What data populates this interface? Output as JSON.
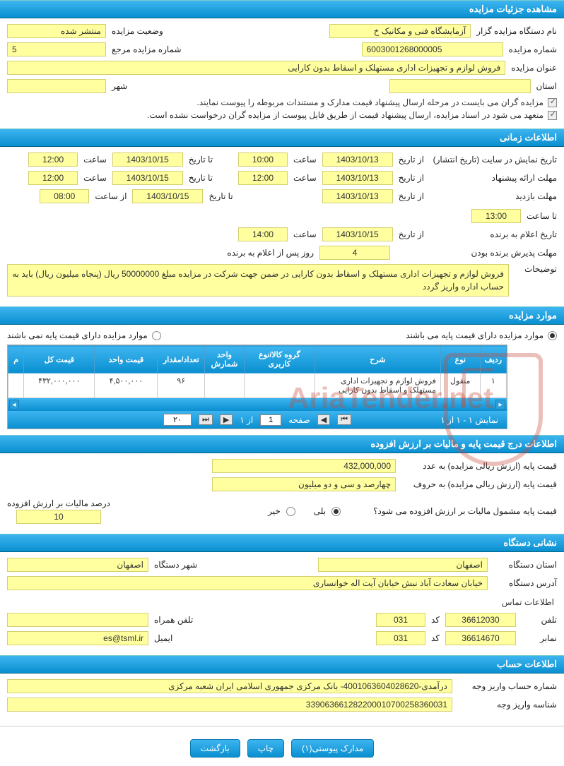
{
  "colors": {
    "header_gradient_top": "#3db5f0",
    "header_gradient_bottom": "#0a8fd0",
    "field_bg": "#ffffa0",
    "field_border": "#d4d070",
    "watermark": "#c84a3a"
  },
  "sections": {
    "details": {
      "title": "مشاهده جزئیات مزایده",
      "org_label": "نام دستگاه مزایده گزار",
      "org_value": "آزمایشگاه فنی و مکانیک خ",
      "status_label": "وضعیت مزایده",
      "status_value": "منتشر شده",
      "number_label": "شماره مزایده",
      "number_value": "6003001268000005",
      "ref_label": "شماره مزایده مرجع",
      "ref_value": "5",
      "title_label": "عنوان مزایده",
      "title_value": "فروش لوازم و تجهیزات اداری مستهلک و اسقاط بدون کارایی",
      "province_label": "استان",
      "province_value": "",
      "city_label": "شهر",
      "city_value": "",
      "note1": "مزایده گران می بایست در مرحله ارسال پیشنهاد قیمت مدارک و مستندات مربوطه را پیوست نمایند.",
      "note2": "متعهد می شود در اسناد مزایده، ارسال پیشنهاد قیمت از طریق فایل پیوست از مزایده گران درخواست نشده است."
    },
    "timing": {
      "title": "اطلاعات زمانی",
      "publish_label": "تاریخ نمایش در سایت (تاریخ انتشار)",
      "from_label": "از تاریخ",
      "to_label": "تا تاریخ",
      "hour_label": "ساعت",
      "from_hour_label": "از ساعت",
      "to_hour_label": "تا ساعت",
      "publish_from_date": "1403/10/13",
      "publish_from_time": "10:00",
      "publish_to_date": "1403/10/15",
      "publish_to_time": "12:00",
      "proposal_label": "مهلت ارائه پیشنهاد",
      "proposal_from_date": "1403/10/13",
      "proposal_from_time": "12:00",
      "proposal_to_date": "1403/10/15",
      "proposal_to_time": "12:00",
      "visit_label": "مهلت بازدید",
      "visit_from_date": "1403/10/13",
      "visit_to_date": "1403/10/15",
      "visit_from_time": "08:00",
      "visit_to_time": "13:00",
      "winner_label": "تاریخ اعلام به برنده",
      "winner_date": "1403/10/15",
      "winner_time": "14:00",
      "accept_label": "مهلت پذیرش برنده بودن",
      "accept_days": "4",
      "accept_suffix": "روز پس از اعلام به برنده",
      "desc_label": "توضیحات",
      "desc_value": "فروش لوازم و تجهیزات اداری مستهلک و اسقاط بدون کارایی در ضمن جهت شرکت در مزایده مبلغ 50000000 ریال (پنجاه میلیون ریال) باید به حساب اداره واریز گردد"
    },
    "items": {
      "title": "موارد مزایده",
      "opt_has_base": "موارد مزایده دارای قیمت پایه می باشند",
      "opt_no_base": "موارد مزایده دارای قیمت پایه نمی باشند",
      "columns": [
        "ردیف",
        "نوع",
        "شرح",
        "گروه کالا/نوع کاربری",
        "واحد شمارش",
        "تعداد/مقدار",
        "قیمت واحد",
        "قیمت کل",
        "م"
      ],
      "rows": [
        [
          "۱",
          "منقول",
          "فروش لوازم و تجهیزات اداری مستهلک و اسقاط بدون کارایی",
          "",
          "",
          "۹۶",
          "۴,۵۰۰,۰۰۰",
          "۴۳۲,۰۰۰,۰۰۰",
          ""
        ]
      ],
      "pager": {
        "page_label": "صفحه",
        "page_value": "1",
        "of_label": "از ۱",
        "per_page": "۲۰",
        "summary": "نمایش ۱ - ۱ از ۱"
      }
    },
    "price": {
      "title": "اطلاعات درج قیمت پایه و مالیات بر ارزش افزوده",
      "num_label": "قیمت پایه (ارزش ریالی مزایده) به عدد",
      "num_value": "432,000,000",
      "word_label": "قیمت پایه (ارزش ریالی مزایده) به حروف",
      "word_value": "چهارصد و سی و دو میلیون",
      "vat_q": "قیمت پایه مشمول مالیات بر ارزش افزوده می شود؟",
      "yes": "بلی",
      "no": "خیر",
      "vat_pct_label": "درصد مالیات بر ارزش افزوده",
      "vat_pct_value": "10"
    },
    "address": {
      "title": "نشانی دستگاه",
      "province_label": "استان دستگاه",
      "province_value": "اصفهان",
      "city_label": "شهر دستگاه",
      "city_value": "اصفهان",
      "addr_label": "آدرس دستگاه",
      "addr_value": "خیابان سعادت آباد نبش خیابان آیت اله خوانساری",
      "contact_title": "اطلاعات تماس",
      "phone_label": "تلفن",
      "phone_value": "36612030",
      "code_label": "کد",
      "phone_code": "031",
      "mobile_label": "تلفن همراه",
      "mobile_value": "",
      "fax_label": "نمابر",
      "fax_value": "36614670",
      "fax_code": "031",
      "email_label": "ایمیل",
      "email_value": "es@tsml.ir"
    },
    "account": {
      "title": "اطلاعات حساب",
      "acc_label": "شماره حساب واریز وجه",
      "acc_value": "درآمدی-4001063604028620- بانک مرکزی جمهوری اسلامی ایران شعبه مرکزی",
      "id_label": "شناسه واریز وجه",
      "id_value": "339063661282200010700258360031"
    }
  },
  "buttons": {
    "attachments": "مدارک پیوستی(۱)",
    "print": "چاپ",
    "back": "بازگشت"
  },
  "watermark_text": "AriaTender.net"
}
